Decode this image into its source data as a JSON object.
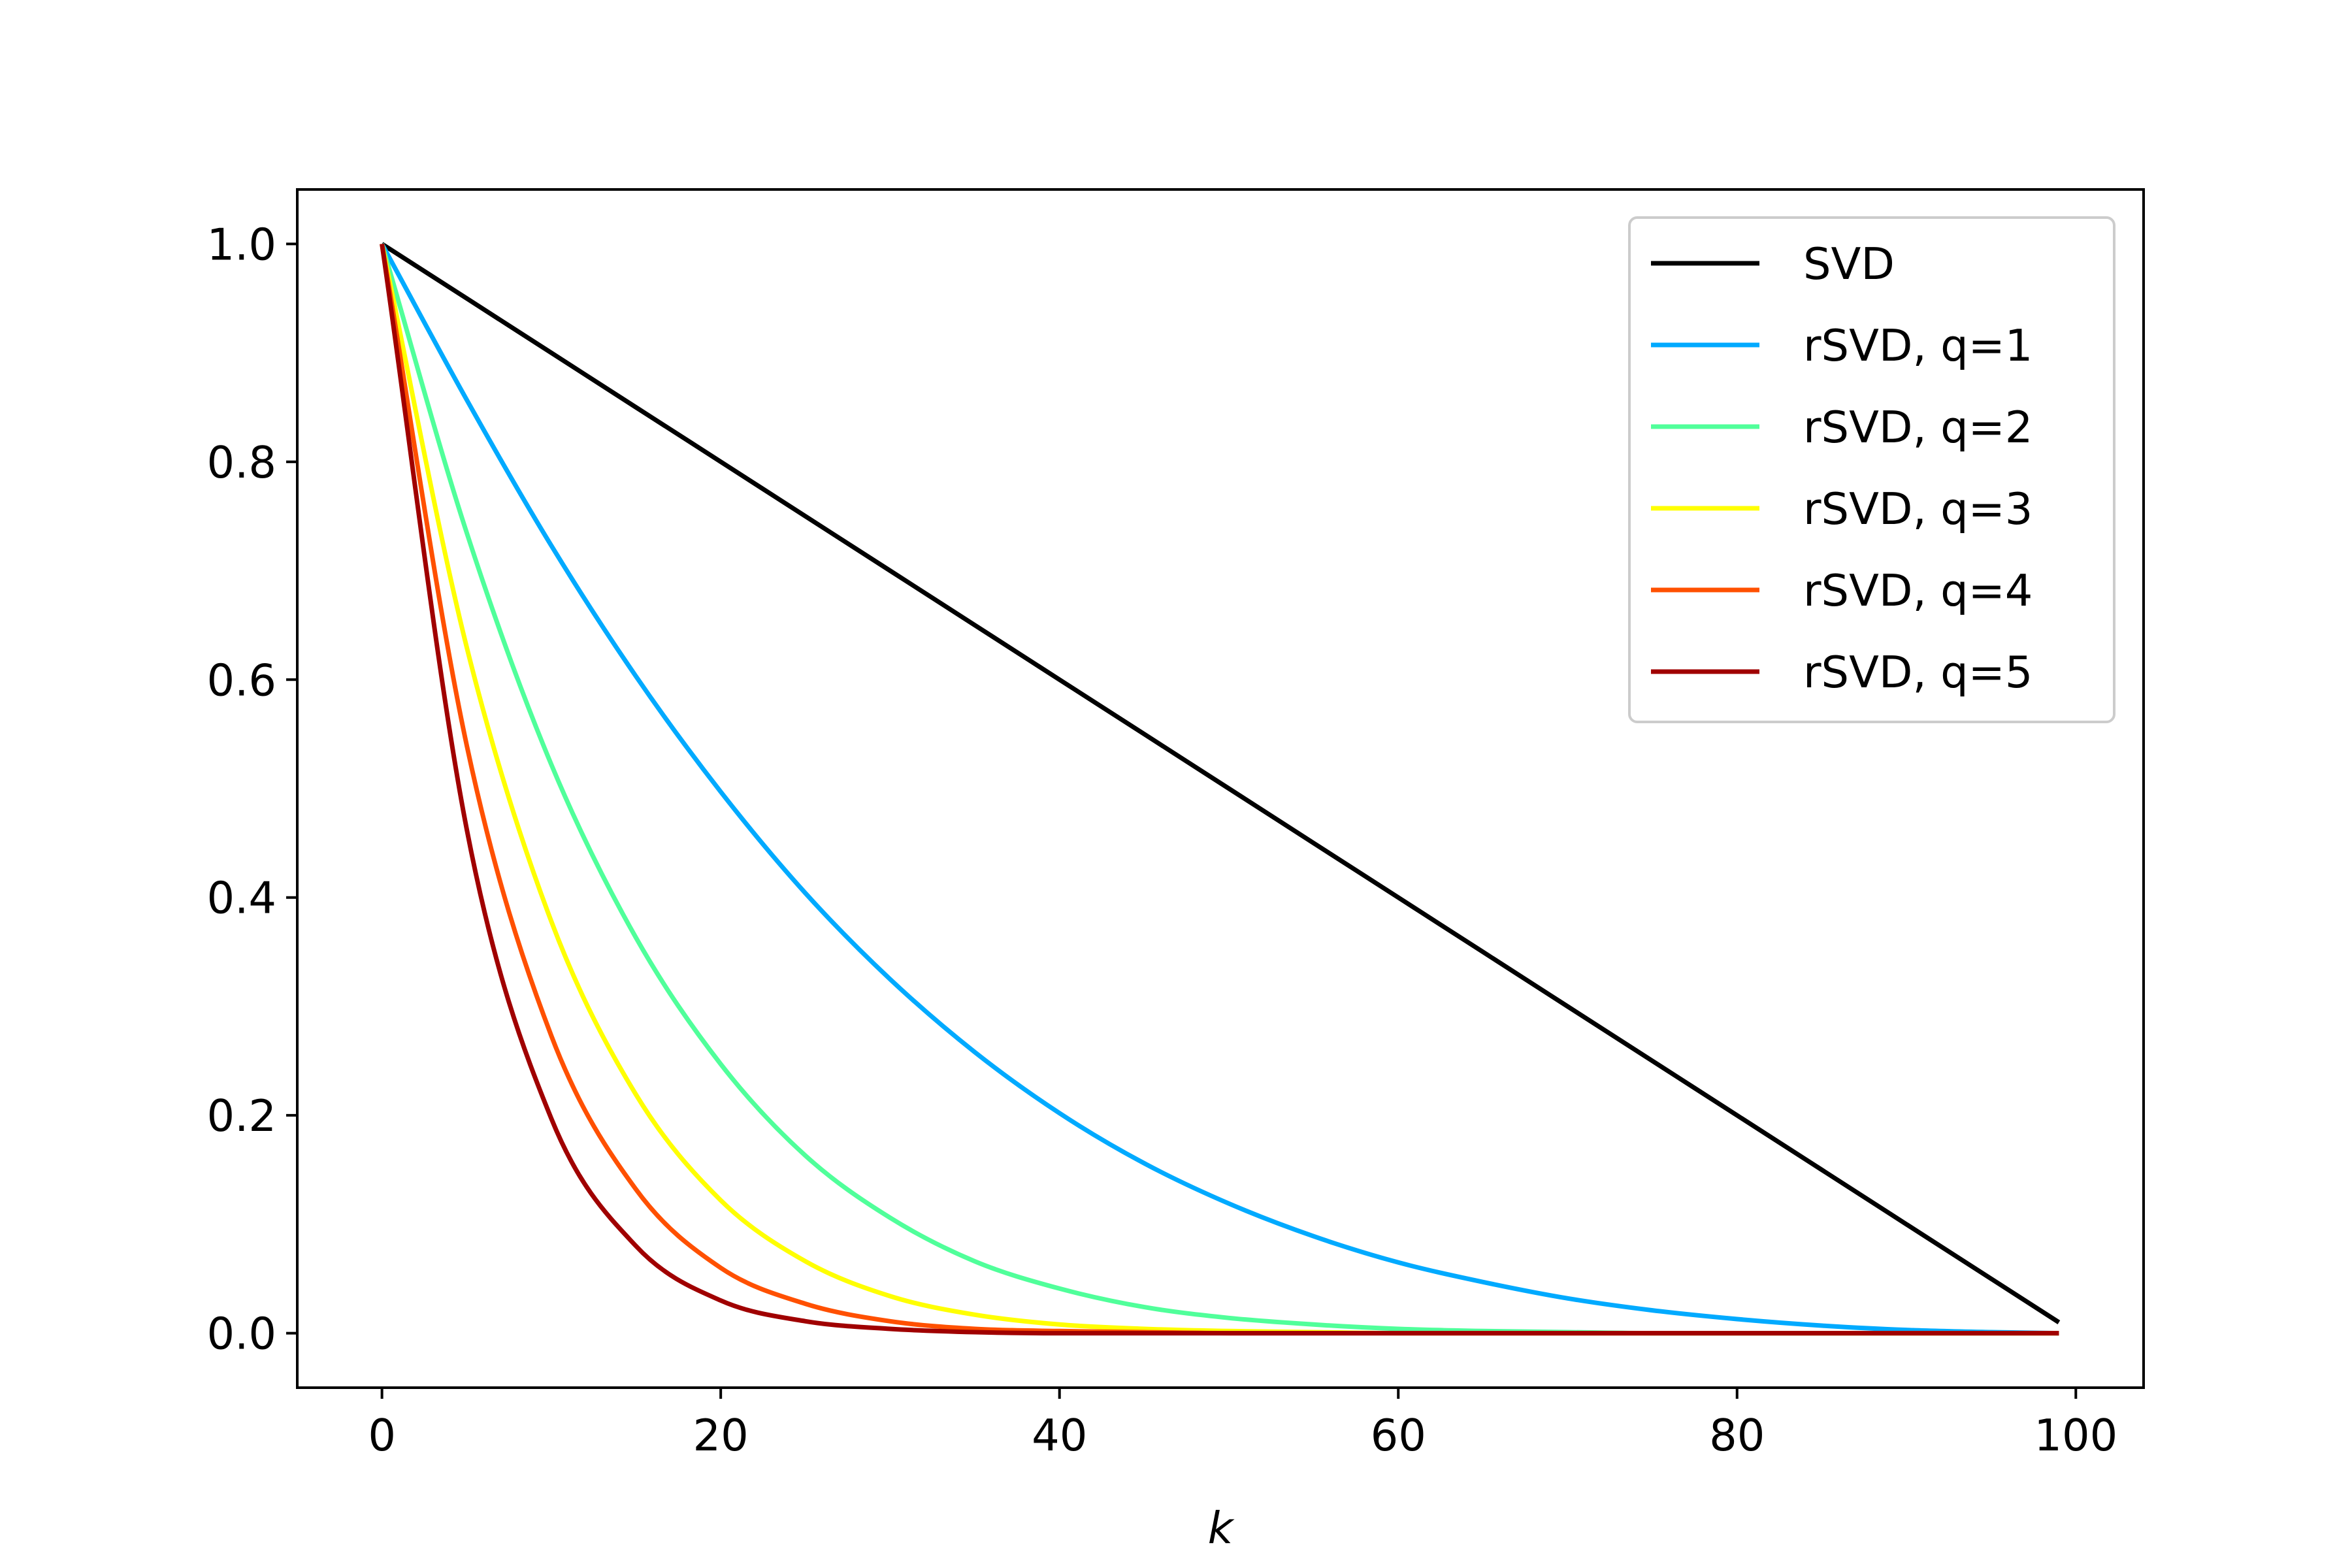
{
  "chart_data": {
    "type": "line",
    "title": "",
    "xlabel": "k",
    "ylabel": "",
    "xlim": [
      -5,
      104
    ],
    "ylim": [
      -0.05,
      1.05
    ],
    "xticks": [
      0,
      20,
      40,
      60,
      80,
      100
    ],
    "xtick_labels": [
      "0",
      "20",
      "40",
      "60",
      "80",
      "100"
    ],
    "yticks": [
      0.0,
      0.2,
      0.4,
      0.6,
      0.8,
      1.0
    ],
    "ytick_labels": [
      "0.0",
      "0.2",
      "0.4",
      "0.6",
      "0.8",
      "1.0"
    ],
    "grid": false,
    "legend_position": "top-right",
    "x": [
      0,
      5,
      10,
      15,
      20,
      25,
      30,
      35,
      40,
      45,
      50,
      55,
      60,
      65,
      70,
      75,
      80,
      85,
      90,
      95,
      99
    ],
    "series": [
      {
        "name": "SVD",
        "color": "#000000",
        "values": [
          1.0,
          0.95,
          0.9,
          0.85,
          0.8,
          0.75,
          0.7,
          0.65,
          0.6,
          0.55,
          0.5,
          0.45,
          0.4,
          0.35,
          0.3,
          0.25,
          0.2,
          0.15,
          0.1,
          0.05,
          0.01
        ]
      },
      {
        "name": "rSVD, q=1",
        "color": "#00aaff",
        "values": [
          1.0,
          0.857,
          0.723,
          0.603,
          0.497,
          0.404,
          0.325,
          0.258,
          0.202,
          0.156,
          0.119,
          0.089,
          0.065,
          0.047,
          0.032,
          0.021,
          0.013,
          0.007,
          0.003,
          0.001,
          0.0
        ]
      },
      {
        "name": "rSVD, q=2",
        "color": "#50ff9a",
        "values": [
          1.0,
          0.735,
          0.522,
          0.363,
          0.247,
          0.163,
          0.106,
          0.066,
          0.041,
          0.024,
          0.014,
          0.008,
          0.004,
          0.002,
          0.001,
          0.0,
          0.0,
          0.0,
          0.0,
          0.0,
          0.0
        ]
      },
      {
        "name": "rSVD, q=3",
        "color": "#ffff00",
        "values": [
          1.0,
          0.63,
          0.378,
          0.219,
          0.122,
          0.066,
          0.034,
          0.017,
          0.008,
          0.004,
          0.002,
          0.001,
          0.0,
          0.0,
          0.0,
          0.0,
          0.0,
          0.0,
          0.0,
          0.0,
          0.0
        ]
      },
      {
        "name": "rSVD, q=4",
        "color": "#ff5000",
        "values": [
          1.0,
          0.54,
          0.273,
          0.132,
          0.06,
          0.027,
          0.011,
          0.004,
          0.002,
          0.001,
          0.0,
          0.0,
          0.0,
          0.0,
          0.0,
          0.0,
          0.0,
          0.0,
          0.0,
          0.0,
          0.0
        ]
      },
      {
        "name": "rSVD, q=5",
        "color": "#a00000",
        "values": [
          1.0,
          0.463,
          0.197,
          0.08,
          0.03,
          0.011,
          0.004,
          0.001,
          0.0,
          0.0,
          0.0,
          0.0,
          0.0,
          0.0,
          0.0,
          0.0,
          0.0,
          0.0,
          0.0,
          0.0,
          0.0
        ]
      }
    ]
  }
}
